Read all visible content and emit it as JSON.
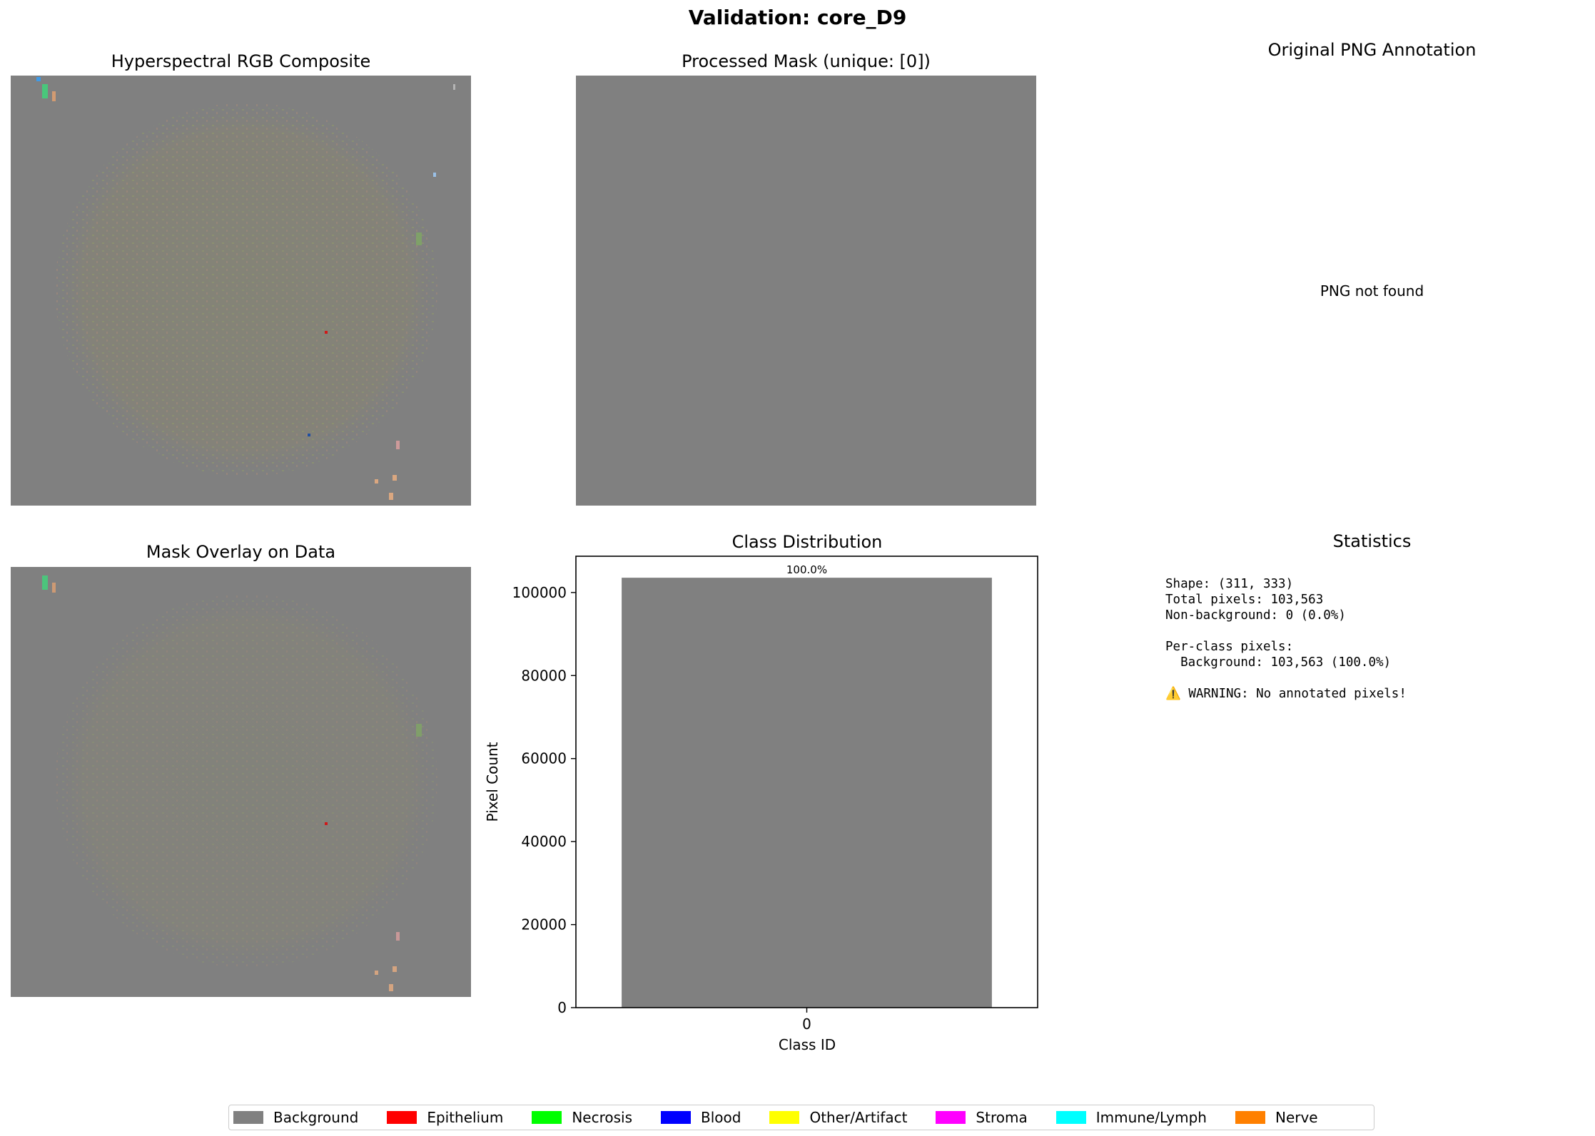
{
  "suptitle": "Validation: core_D9",
  "panels": {
    "rgb_title": "Hyperspectral RGB Composite",
    "mask_title": "Processed Mask (unique: [0])",
    "png_title": "Original PNG Annotation",
    "png_message": "PNG not found",
    "overlay_title": "Mask Overlay on Data",
    "stats_title": "Statistics"
  },
  "stats": {
    "lines": [
      "Shape: (311, 333)",
      "Total pixels: 103,563",
      "Non-background: 0 (0.0%)",
      "",
      "Per-class pixels:",
      "  Background: 103,563 (100.0%)",
      "",
      "⚠️ WARNING: No annotated pixels!"
    ]
  },
  "chart_data": {
    "type": "bar",
    "title": "Class Distribution",
    "xlabel": "Class ID",
    "ylabel": "Pixel Count",
    "categories": [
      "0"
    ],
    "values": [
      103563
    ],
    "data_labels": [
      "100.0%"
    ],
    "yticks": [
      0,
      20000,
      40000,
      60000,
      80000,
      100000
    ],
    "ylim": [
      0,
      108741
    ],
    "bar_color": "#808080"
  },
  "legend": {
    "placement": "bottom-center",
    "items": [
      {
        "label": "Background",
        "color": "#808080"
      },
      {
        "label": "Epithelium",
        "color": "#ff0000"
      },
      {
        "label": "Necrosis",
        "color": "#00ff00"
      },
      {
        "label": "Blood",
        "color": "#0000ff"
      },
      {
        "label": "Other/Artifact",
        "color": "#ffff00"
      },
      {
        "label": "Stroma",
        "color": "#ff00ff"
      },
      {
        "label": "Immune/Lymph",
        "color": "#00ffff"
      },
      {
        "label": "Nerve",
        "color": "#ff8000"
      }
    ]
  }
}
